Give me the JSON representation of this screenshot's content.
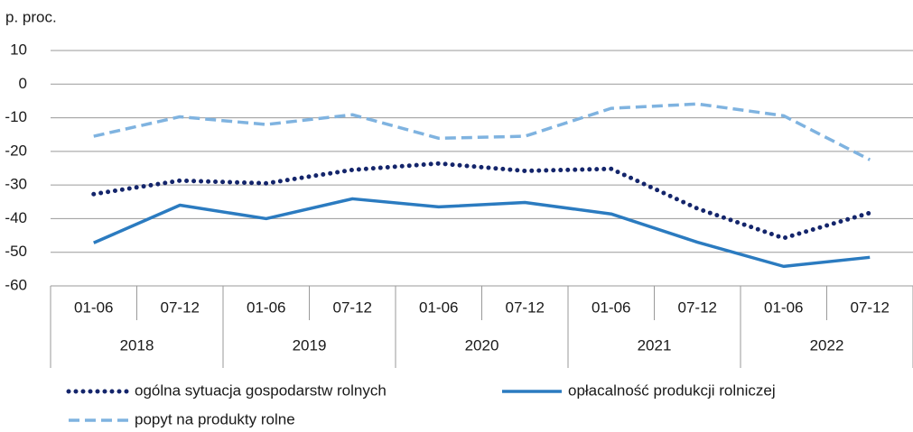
{
  "chart_data": {
    "type": "line",
    "y_label": "p. proc.",
    "categories": [
      "01-06",
      "07-12",
      "01-06",
      "07-12",
      "01-06",
      "07-12",
      "01-06",
      "07-12",
      "01-06",
      "07-12"
    ],
    "groups": [
      "2018",
      "2019",
      "2020",
      "2021",
      "2022"
    ],
    "series": [
      {
        "name": "ogólna sytuacja gospodarstw rolnych",
        "color": "#14256b",
        "style": "dotted",
        "values": [
          -32.7,
          -28.7,
          -29.5,
          -25.5,
          -23.6,
          -25.8,
          -25.2,
          -37,
          -45.8,
          -38.3
        ]
      },
      {
        "name": "opłacalność produkcji rolniczej",
        "color": "#2b7bc0",
        "style": "solid",
        "values": [
          -47.2,
          -36,
          -40,
          -34.1,
          -36.5,
          -35.2,
          -38.6,
          -47,
          -54.2,
          -51.5
        ]
      },
      {
        "name": "popyt na produkty rolne",
        "color": "#7fb3e0",
        "style": "dashed",
        "values": [
          -15.5,
          -9.7,
          -12,
          -9.1,
          -16.1,
          -15.5,
          -7.2,
          -5.9,
          -9.4,
          -22.5
        ]
      }
    ],
    "ylim": [
      -60,
      10
    ],
    "yticks": [
      10,
      0,
      -10,
      -20,
      -30,
      -40,
      -50,
      -60
    ],
    "grid": true
  }
}
